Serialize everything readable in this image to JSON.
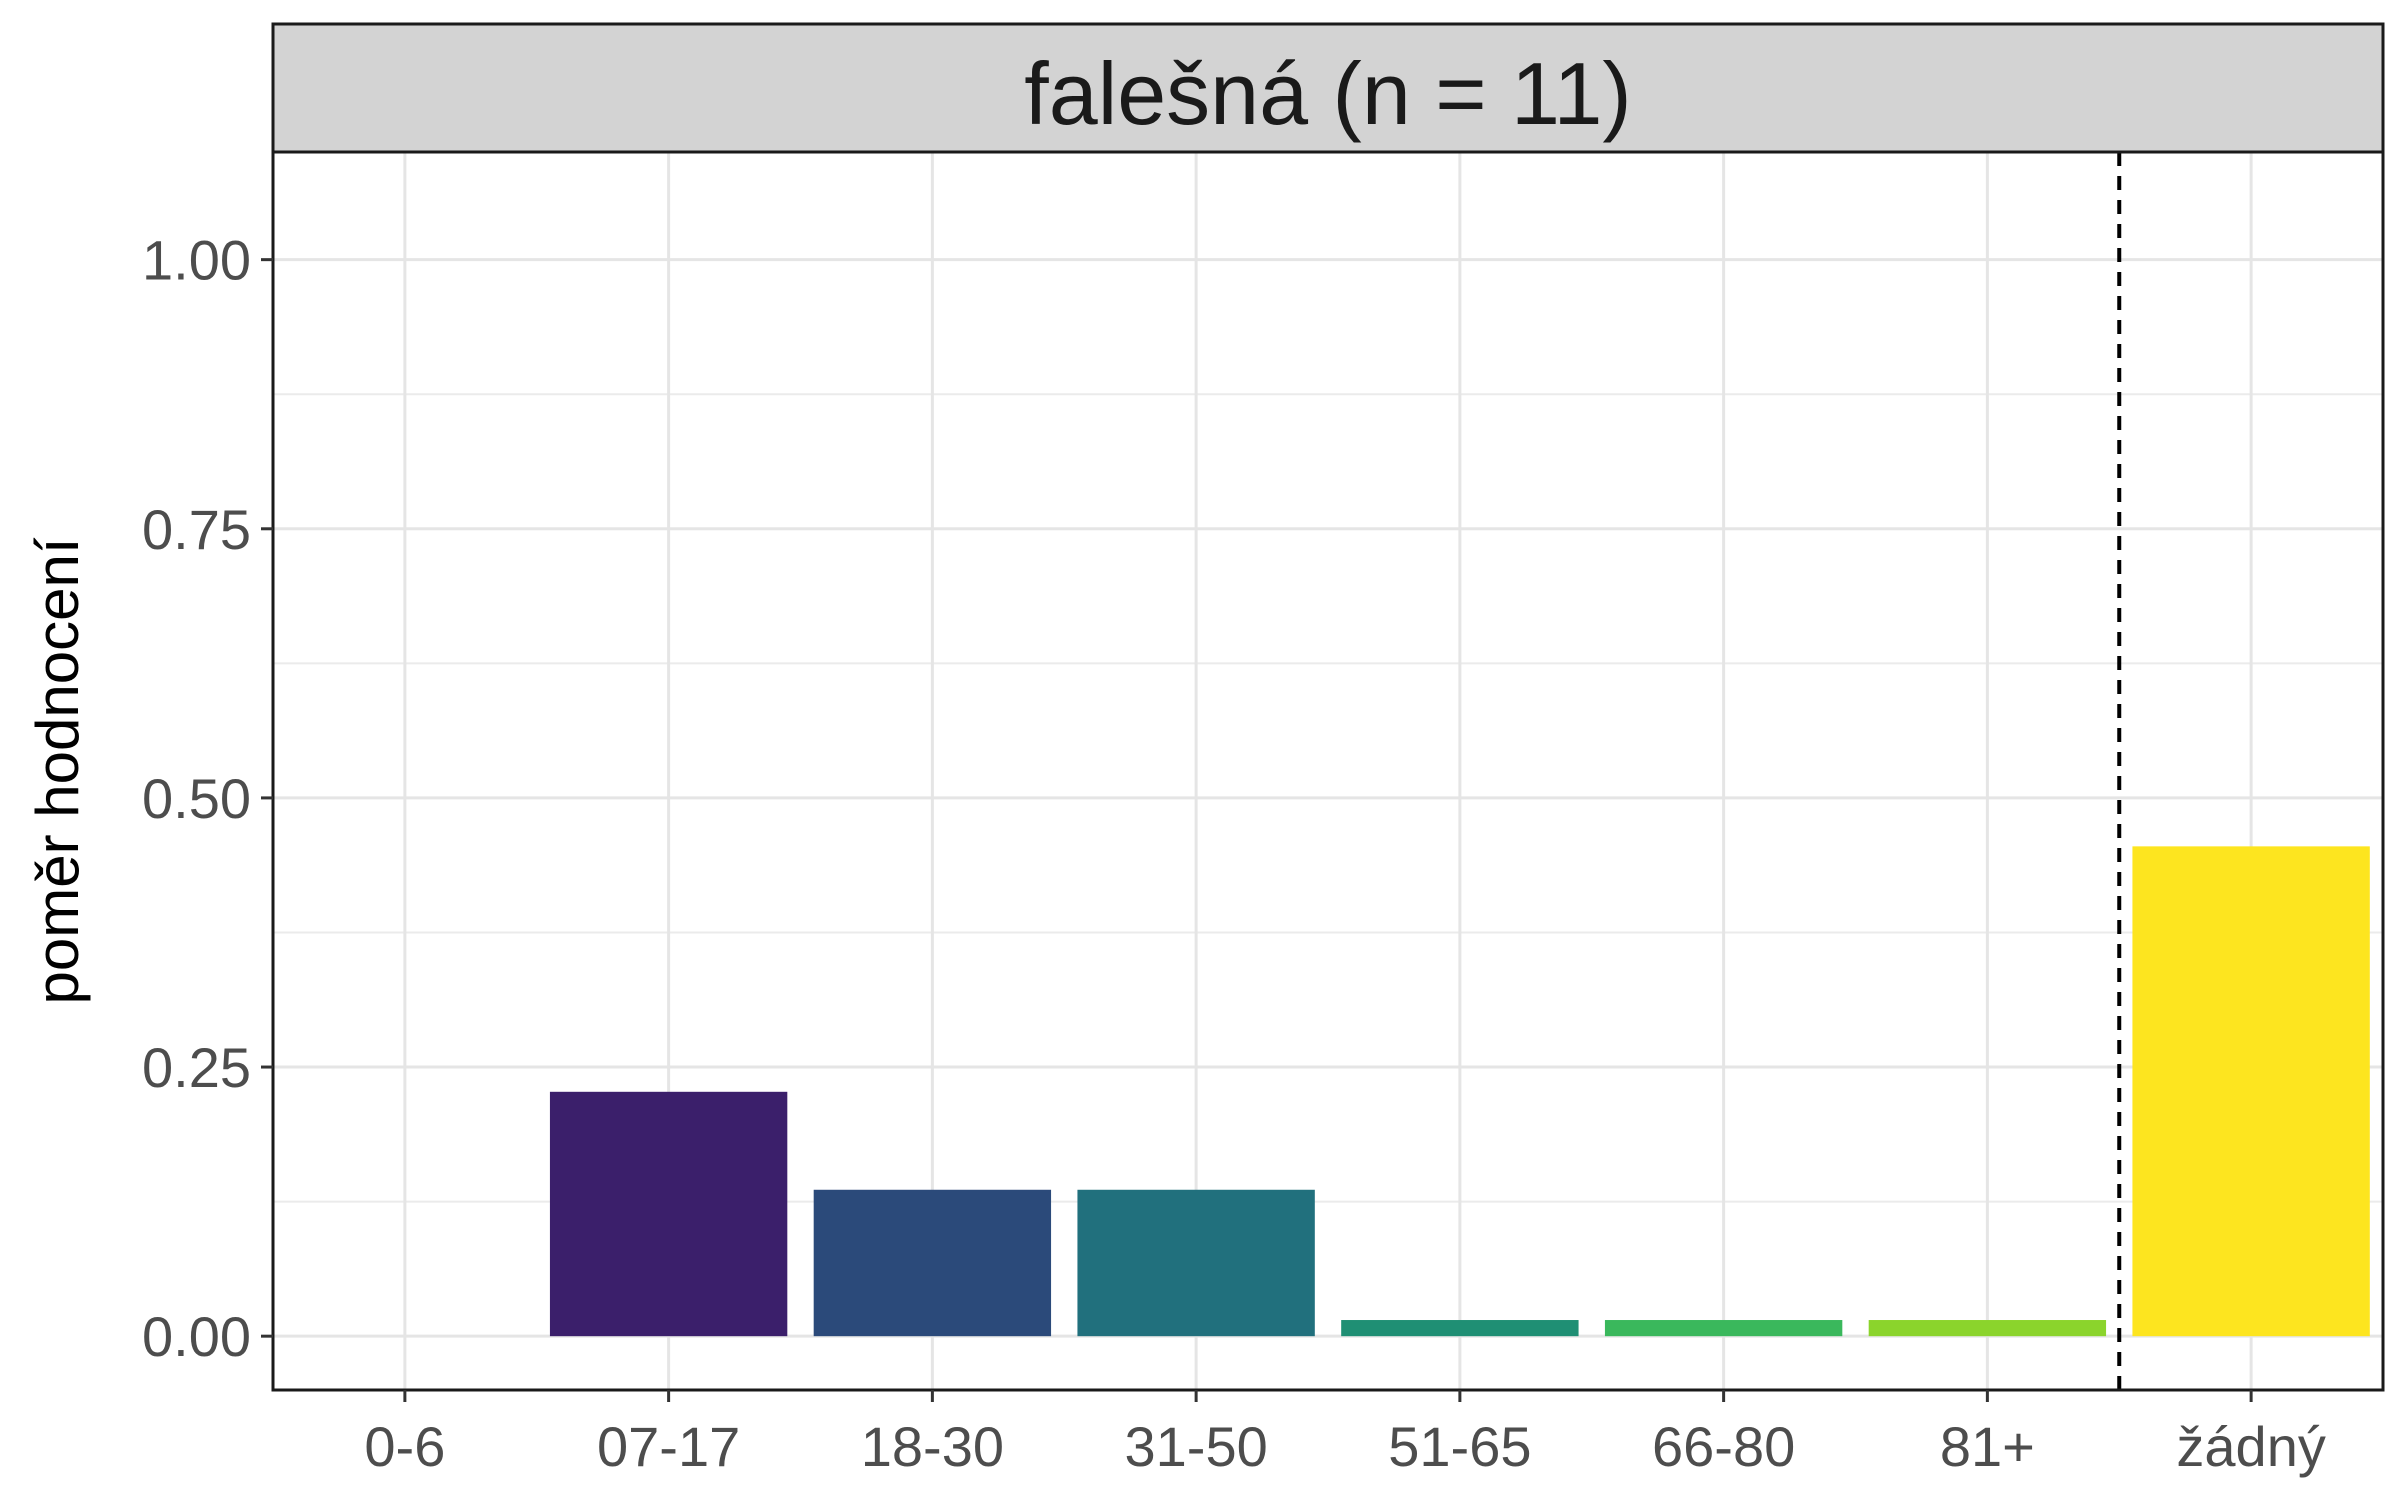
{
  "chart_data": {
    "type": "bar",
    "facet_label": "falešná (n = 11)",
    "xlabel": "",
    "ylabel": "poměr hodnocení",
    "categories": [
      "0-6",
      "07-17",
      "18-30",
      "31-50",
      "51-65",
      "66-80",
      "81+",
      "žádný"
    ],
    "values": [
      0.0,
      0.227,
      0.136,
      0.136,
      0.015,
      0.015,
      0.015,
      0.455
    ],
    "colors": [
      "#440154",
      "#3B1F6B",
      "#2B4A7A",
      "#21707D",
      "#1F8F74",
      "#3AB85C",
      "#8BD42C",
      "#FDE51F"
    ],
    "ylim": [
      -0.05,
      1.1
    ],
    "yticks": [
      0.0,
      0.25,
      0.5,
      0.75,
      1.0
    ],
    "ytick_labels": [
      "0.00",
      "0.25",
      "0.50",
      "0.75",
      "1.00"
    ],
    "grid": true,
    "reference_line": {
      "style": "dashed",
      "between": [
        "81+",
        "žádný"
      ]
    }
  }
}
